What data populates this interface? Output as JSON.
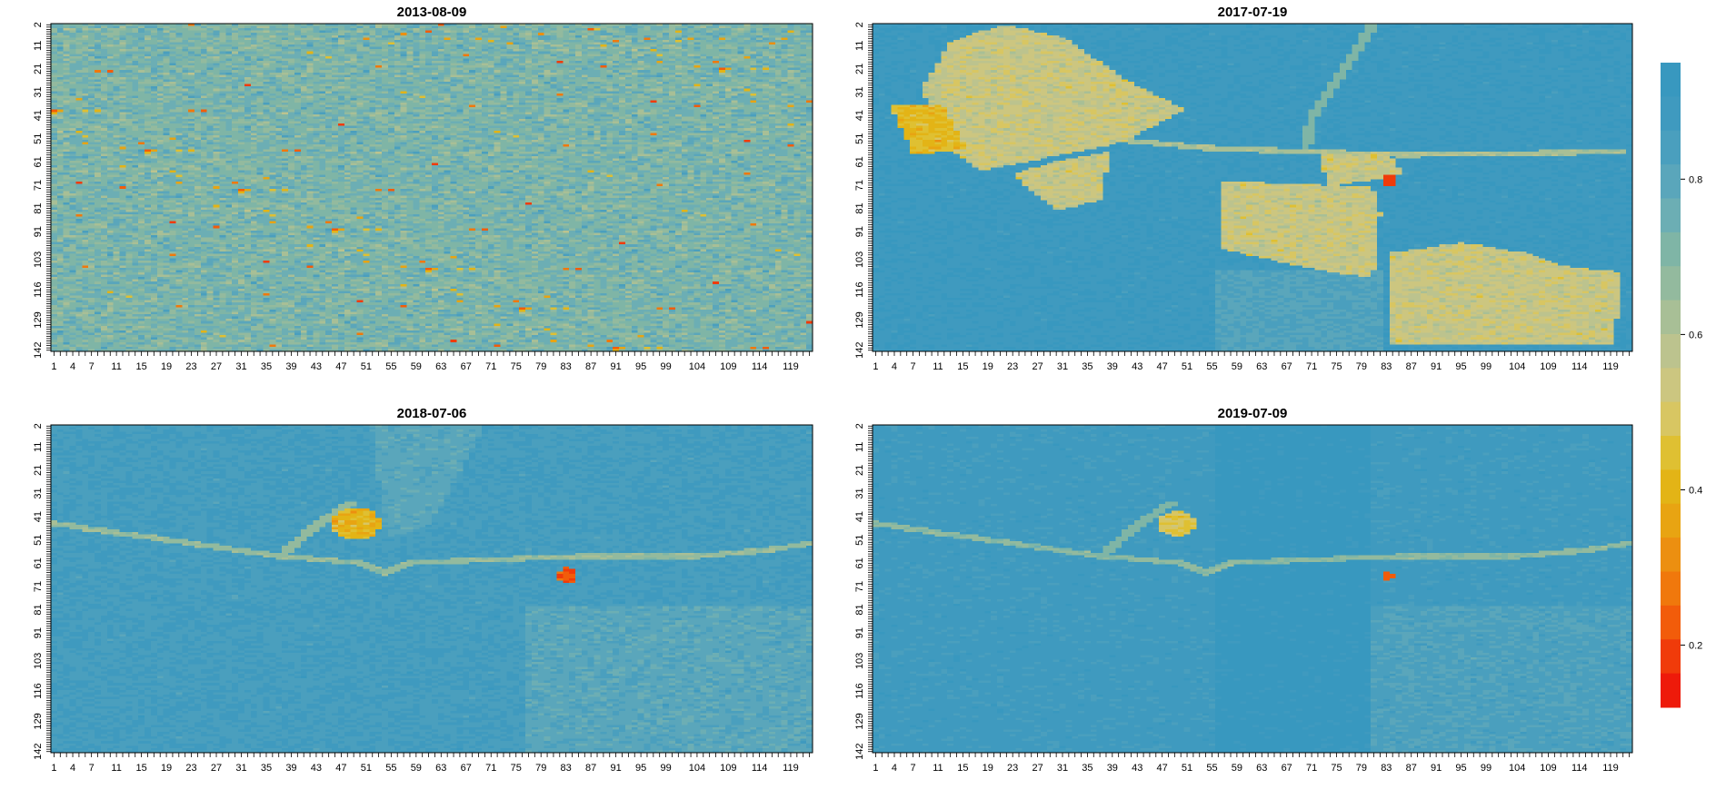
{
  "chart_data": [
    {
      "type": "heatmap",
      "title": "2013-08-09",
      "x_tick_labels": [
        "1",
        "4",
        "7",
        "11",
        "15",
        "19",
        "23",
        "27",
        "31",
        "35",
        "39",
        "43",
        "47",
        "51",
        "55",
        "59",
        "63",
        "67",
        "71",
        "75",
        "79",
        "83",
        "87",
        "91",
        "95",
        "99",
        "104",
        "109",
        "114",
        "119"
      ],
      "y_tick_labels": [
        "2",
        "11",
        "21",
        "31",
        "41",
        "51",
        "61",
        "71",
        "81",
        "91",
        "103",
        "116",
        "129",
        "142"
      ],
      "x_range": [
        1,
        122
      ],
      "y_range": [
        2,
        142
      ],
      "pattern": "uniform noisy mix of blue and yellow with scattered orange/red pixels"
    },
    {
      "type": "heatmap",
      "title": "2017-07-19",
      "x_tick_labels": [
        "1",
        "4",
        "7",
        "11",
        "15",
        "19",
        "23",
        "27",
        "31",
        "35",
        "39",
        "43",
        "47",
        "51",
        "55",
        "59",
        "63",
        "67",
        "71",
        "75",
        "79",
        "83",
        "87",
        "91",
        "95",
        "99",
        "104",
        "109",
        "114",
        "119"
      ],
      "y_tick_labels": [
        "2",
        "11",
        "21",
        "31",
        "41",
        "51",
        "61",
        "71",
        "81",
        "91",
        "103",
        "116",
        "129",
        "142"
      ],
      "x_range": [
        1,
        122
      ],
      "y_range": [
        2,
        142
      ],
      "pattern": "blue background with large yellow patches (cleared areas) and a thin road line"
    },
    {
      "type": "heatmap",
      "title": "2018-07-06",
      "x_tick_labels": [
        "1",
        "4",
        "7",
        "11",
        "15",
        "19",
        "23",
        "27",
        "31",
        "35",
        "39",
        "43",
        "47",
        "51",
        "55",
        "59",
        "63",
        "67",
        "71",
        "75",
        "79",
        "83",
        "87",
        "91",
        "95",
        "99",
        "104",
        "109",
        "114",
        "119"
      ],
      "y_tick_labels": [
        "2",
        "11",
        "21",
        "31",
        "41",
        "51",
        "61",
        "71",
        "81",
        "91",
        "103",
        "116",
        "129",
        "142"
      ],
      "x_range": [
        1,
        122
      ],
      "y_range": [
        2,
        142
      ],
      "pattern": "mostly blue with light regrowth areas, road line and small orange hotspots"
    },
    {
      "type": "heatmap",
      "title": "2019-07-09",
      "x_tick_labels": [
        "1",
        "4",
        "7",
        "11",
        "15",
        "19",
        "23",
        "27",
        "31",
        "35",
        "39",
        "43",
        "47",
        "51",
        "55",
        "59",
        "63",
        "67",
        "71",
        "75",
        "79",
        "83",
        "87",
        "91",
        "95",
        "99",
        "104",
        "109",
        "114",
        "119"
      ],
      "y_tick_labels": [
        "2",
        "11",
        "21",
        "31",
        "41",
        "51",
        "61",
        "71",
        "81",
        "91",
        "103",
        "116",
        "129",
        "142"
      ],
      "x_range": [
        1,
        122
      ],
      "y_range": [
        2,
        142
      ],
      "pattern": "mostly blue, road line and small yellow/orange hotspots"
    }
  ],
  "colorbar": {
    "range": [
      0.12,
      0.95
    ],
    "tick_labels": [
      "0.2",
      "0.4",
      "0.6",
      "0.8"
    ],
    "tick_values": [
      0.2,
      0.4,
      0.6,
      0.8
    ],
    "colors": [
      "#ee1a0a",
      "#f03b0a",
      "#f25c0a",
      "#f0780c",
      "#ec8f10",
      "#e8a412",
      "#e3b416",
      "#dfc032",
      "#d8c662",
      "#ccc680",
      "#bcc38e",
      "#a8bf96",
      "#93ba9e",
      "#7fb5a6",
      "#6caeb4",
      "#5aa6bb",
      "#4a9fbe",
      "#3f9abf",
      "#3898bf"
    ]
  },
  "colors": {
    "deep_blue": "#3a98bb",
    "mid_blue": "#5ea9c0",
    "light_blue": "#8fbfc8",
    "pale": "#bccfb8",
    "yellow": "#e2c850",
    "gold": "#e8b420",
    "orange": "#ee8010",
    "red": "#ee1a0a"
  }
}
